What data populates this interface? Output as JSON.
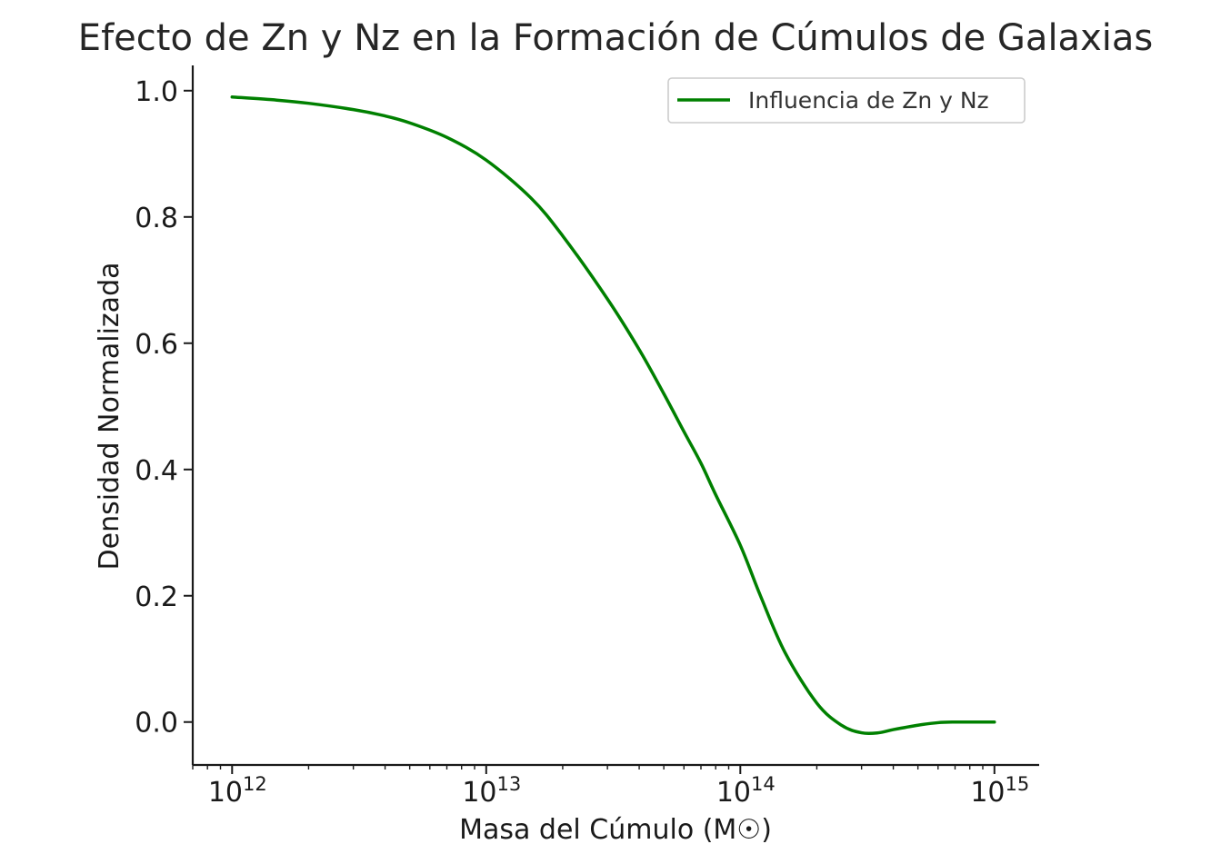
{
  "chart_data": {
    "type": "line",
    "title": "Efecto de Zn y Nz en la Formación de Cúmulos de Galaxias",
    "xlabel": "Masa del Cúmulo (M☉)",
    "ylabel": "Densidad Normalizada",
    "xscale": "log",
    "xlim": [
      700000000000.0,
      1500000000000000.0
    ],
    "ylim": [
      -0.068,
      1.04
    ],
    "xticks": [
      {
        "value": 1000000000000.0,
        "base": "10",
        "exp": "12"
      },
      {
        "value": 10000000000000.0,
        "base": "10",
        "exp": "13"
      },
      {
        "value": 100000000000000.0,
        "base": "10",
        "exp": "14"
      },
      {
        "value": 1000000000000000.0,
        "base": "10",
        "exp": "15"
      }
    ],
    "yticks": [
      {
        "value": 0.0,
        "label": "0.0"
      },
      {
        "value": 0.2,
        "label": "0.2"
      },
      {
        "value": 0.4,
        "label": "0.4"
      },
      {
        "value": 0.6,
        "label": "0.6"
      },
      {
        "value": 0.8,
        "label": "0.8"
      },
      {
        "value": 1.0,
        "label": "1.0"
      }
    ],
    "grid": false,
    "legend_position": "top-right",
    "series": [
      {
        "name": "Influencia de Zn y Nz",
        "color": "#008000",
        "x": [
          1000000000000.0,
          1500000000000.0,
          2000000000000.0,
          3000000000000.0,
          4000000000000.0,
          5000000000000.0,
          7000000000000.0,
          10000000000000.0,
          15000000000000.0,
          20000000000000.0,
          30000000000000.0,
          40000000000000.0,
          50000000000000.0,
          60000000000000.0,
          70000000000000.0,
          80000000000000.0,
          100000000000000.0,
          120000000000000.0,
          150000000000000.0,
          200000000000000.0,
          250000000000000.0,
          300000000000000.0,
          350000000000000.0,
          400000000000000.0,
          500000000000000.0,
          600000000000000.0,
          700000000000000.0,
          800000000000000.0,
          1000000000000000.0
        ],
        "y": [
          0.99,
          0.985,
          0.98,
          0.97,
          0.96,
          0.949,
          0.926,
          0.89,
          0.83,
          0.77,
          0.67,
          0.59,
          0.52,
          0.46,
          0.41,
          0.36,
          0.28,
          0.2,
          0.11,
          0.03,
          -0.005,
          -0.017,
          -0.017,
          -0.012,
          -0.005,
          -0.001,
          0.0,
          0.0,
          0.0
        ]
      }
    ]
  }
}
